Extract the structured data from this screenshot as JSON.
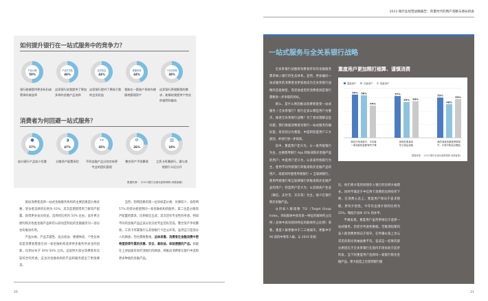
{
  "header": {
    "report_title": "2023 银行业经营战略报告：存量时代的用户洞察与增长机会"
  },
  "left_page": {
    "page_number": "20",
    "panel": {
      "section1_title": "如何提升银行在一站式服务中的竞争力？",
      "section1_items": [
        {
          "label": "产品价格",
          "value": "50%",
          "percent": 50,
          "caption": "银行能够提供更多折扣或更高的收益率"
        },
        {
          "label": "产品丰富性",
          "value": "46%",
          "percent": 46,
          "caption": "这家银行给我提供了更加多样的金融产品选择"
        },
        {
          "label": "会员权益",
          "value": "44%",
          "percent": 44,
          "caption": "这家银行提供了更吸引我的会员权益"
        },
        {
          "label": "便捷体验",
          "value": "44%",
          "percent": 44,
          "caption": "我能在一套账户系统内便捷地管理资产"
        },
        {
          "label": "个性化体验",
          "value": "38%",
          "percent": 38,
          "caption": "这家银行更理解我的需求，能够给我提供个性化的推荐和服务"
        }
      ],
      "section2_title": "消费者为何回避一站式服务？",
      "section2_items": [
        {
          "icon": "piggy-bank-icon",
          "value": "57%",
          "percent": 57,
          "caption": "部分银行产品较少优惠"
        },
        {
          "icon": "shield-icon",
          "value": "47%",
          "percent": 47,
          "caption": "分散资产配置风险"
        },
        {
          "icon": "org-chart-icon",
          "value": "35%",
          "percent": 35,
          "caption": "不同金融产品分别交给更专业的团队管理"
        },
        {
          "icon": "gear-coins-icon",
          "value": "26%",
          "percent": 26,
          "caption": "整合资产手续繁琐"
        },
        {
          "icon": "bank-icon",
          "value": "19%",
          "percent": 19,
          "caption": "工资卡所属银行，要与其他银行卡区分开"
        }
      ],
      "source": "数据来源：《2023银行业增长趋势调研-消费者篇》"
    },
    "col1": [
      "驱动消费者选择一站式金融服务机构的主要因素是价格优惠，受访者选择的比例为 63%；其次是期望得到了解资产配置、获得更多会员权益，选择的比例为 50% 左右；此外更方便的购买各类金融产品和可以获动定制化的金融服务对一部分也有推动作用。",
      "产品价格、产品丰富性、会员权益、便捷体验、个性化体验是消费者愿意在同一家金融机构选择更多服务所关注的因素，比例分布于 40%-50% 之间。这说明大部分消费者有比较综合的考虑，这也对金融机构的产品和服务提出了更高要求。"
    ],
    "col2_pre": "当然，阻碍因素的第一位同样是价格：优惠较少，会阻碍 57% 的受访者使用同一家金融机构的服务；第二位是分散资产配置的需求，比例接近五成；其次还有专业性的考虑，例如不同的金融产品应该分别交给专业团队完成，整合资产手续繁琐，工资卡所属银行与其他银行卡区分开等。虽然这只是部分人的顾虑，但也需要重视。",
    "col2_bold": "总体来看，消费者在金融消费中更希望获得专属的优惠、安全、高收益、体验便捷的产品。",
    "col2_post": "如能在上述层面有效打消他们的顾虑，将推动消费者在银行中选购更多种类的金融产品。"
  },
  "right_page": {
    "page_number": "21",
    "title": "一站式服务与全关系银行战略",
    "col1": [
      "全关系银行试图将消费者所有的金融服务需求纳入银行的生态体系。显然，更加偏好一站式服务的消费者也更容易成为全关系银行战略的首批顾客，而其他类型的消费者则是银行需要进一步争取的目标。",
      "那么，是什么原因推动消费者接受一站式服务 / 全关系银行？银行应该以哪些用户为重点，推进全关系银行战略？为了尝试理解这些问题，我们根据消费者对银行一站式服务的偏好度，将其划分为重度、中度和轻度用户三大类别，并进行进一步探索。",
      "其中，重度用户定义为，以一家传统银行为主，主要使用银行 App 转账或购买金融产品的用户；中度用户定义为，以多家传统银行为主，使用不同传统银行转账或购买金融产品的用户，或者同时使用传统银行 + 互联网银行，使用传统银行和互联网银行转账或购买金融产品的用户；轻度用户定义为：以其他商户生态（微信、支付宝、京东等）为主，很少在银行购买金融产品。",
      "从目标人群指数 TGI（Target Group Index，目标群体中具有某一特征的群体所占比例 / 总体中具有相同特征的群体所占比例）来看，重度人群更集中于二三线城市，更集中于 90 前的中青年人群。与 2019 年相"
    ],
    "col2": [
      "比，他们将大笔的闲钱存入银行的比例大幅增长，同时不满足于中信用卡消费的比例有所下降，在消费心态上，重度用户倾向于追求稳健，更有计划性。今年有出境计划的比例为 25%，略低于总体 31% 的水平。",
      "不难发现，重度用户虽然更倾向于选择一站式服务，但结合考虑各数据，可推测短期内该人群消费更倾向于保守，在传播价值上也与常见的舆论领袖画像不符。造成这一结果的部分原因在于全关系银行在国内市场尚处于起步阶段，当下的重度用户选择同一家银行购买金融产品，更大程度上也受到银行服"
    ]
  },
  "chart_data": {
    "type": "bar",
    "title": "重度用户更加精打细算、谨慎消费",
    "categories": [
      "我在日常消费中，平均每一单消费的金额有所下降",
      "我现在更喜欢先计划后消费",
      "我的消费态度更谨慎保守，平常只购买必需品"
    ],
    "series": [
      {
        "name": "重度用户",
        "values": [
          59,
          57,
          55
        ],
        "color": "#4a7cc4"
      },
      {
        "name": "中度用户",
        "values": [
          58,
          49,
          46
        ],
        "color": "#8ec3df"
      },
      {
        "name": "轻度用户",
        "values": [
          44,
          50,
          53
        ],
        "color": "#cacaca"
      }
    ],
    "value_labels": [
      [
        "59%",
        "58%",
        "44%"
      ],
      [
        "57%",
        "49%",
        "50%"
      ],
      [
        "55%",
        "46%",
        "53%"
      ]
    ],
    "ylim": [
      0,
      70
    ],
    "grid": true,
    "legend": "top-left",
    "source": "数据来源：《2023银行业增长趋势调研-消费者篇》"
  },
  "colors": {
    "accent": "#7bbde0",
    "panel_dark": "#676361",
    "panel_light": "#efefef",
    "top_bar": "#3f6fb5"
  }
}
